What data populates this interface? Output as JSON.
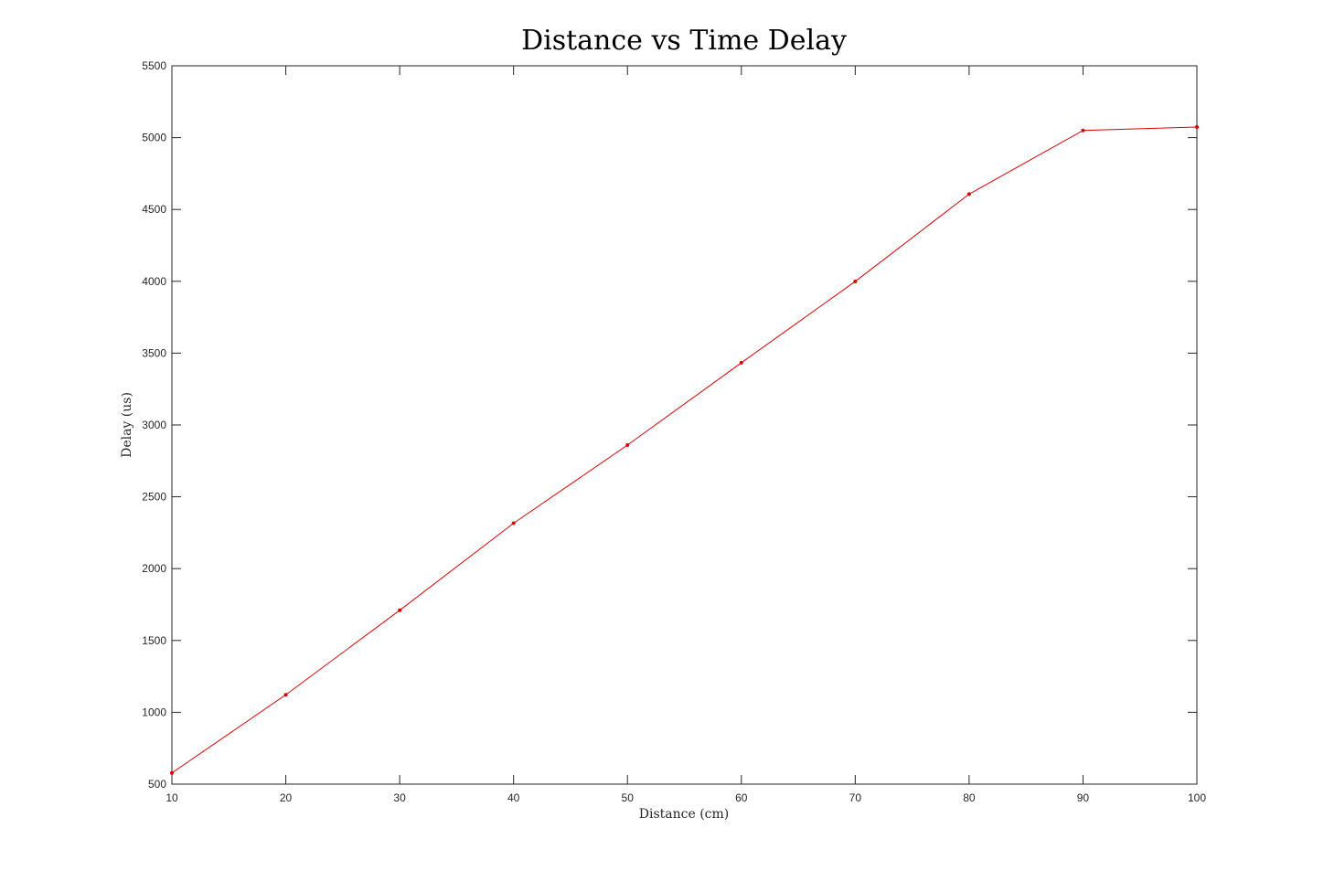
{
  "chart_data": {
    "type": "line",
    "title": "Distance vs Time Delay",
    "xlabel": "Distance (cm)",
    "ylabel": "Delay (us)",
    "xlim": [
      10,
      100
    ],
    "ylim": [
      500,
      5500
    ],
    "xticks": [
      10,
      20,
      30,
      40,
      50,
      60,
      70,
      80,
      90,
      100
    ],
    "yticks": [
      500,
      1000,
      1500,
      2000,
      2500,
      3000,
      3500,
      4000,
      4500,
      5000,
      5500
    ],
    "grid": false,
    "series": [
      {
        "x": [
          10,
          20,
          30,
          40,
          50,
          60,
          70,
          80,
          90,
          100
        ],
        "y": [
          578,
          1122,
          1710,
          2316,
          2860,
          3433,
          3999,
          4607,
          5050,
          5074
        ],
        "color": "#e00000",
        "marker": "dot"
      }
    ]
  }
}
